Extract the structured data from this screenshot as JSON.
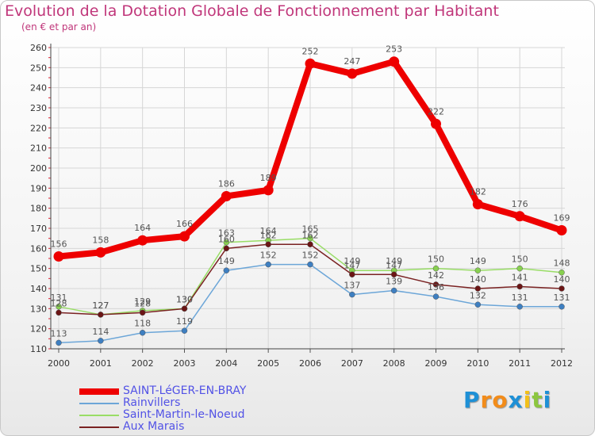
{
  "title": "Evolution de la Dotation Globale de Fonctionnement par Habitant",
  "subtitle": "(en € et par an)",
  "logo": {
    "letters": [
      "P",
      "r",
      "o",
      "x",
      "i",
      "t",
      "i"
    ],
    "colors": [
      "#1e90d6",
      "#f28c1a",
      "#f28c1a",
      "#1e90d6",
      "#f2c01a",
      "#8cc63f",
      "#1e90d6"
    ]
  },
  "chart_data": {
    "type": "line",
    "title": "Evolution de la Dotation Globale de Fonctionnement par Habitant",
    "xlabel": "",
    "ylabel": "(en € et par an)",
    "ylim": [
      110,
      260
    ],
    "yticks": [
      110,
      120,
      130,
      140,
      150,
      160,
      170,
      180,
      190,
      200,
      210,
      220,
      230,
      240,
      250,
      260
    ],
    "x": [
      "2000",
      "2001",
      "2002",
      "2003",
      "2004",
      "2005",
      "2006",
      "2007",
      "2008",
      "2009",
      "2010",
      "2011",
      "2012"
    ],
    "series": [
      {
        "name": "SAINT-LéGER-EN-BRAY",
        "color": "#ee0000",
        "marker": "#ee0000",
        "width": 8,
        "values": [
          156,
          158,
          164,
          166,
          186,
          189,
          252,
          247,
          253,
          222,
          182,
          176,
          169
        ],
        "labels": [
          "156",
          "158",
          "164",
          "166",
          "186",
          "189",
          "252",
          "247",
          "253",
          "222",
          "182",
          "176",
          "169"
        ]
      },
      {
        "name": "Rainvillers",
        "color": "#6ca6d8",
        "marker": "#3e7fc1",
        "width": 1.5,
        "values": [
          113,
          114,
          118,
          119,
          149,
          152,
          152,
          137,
          139,
          136,
          132,
          131,
          131
        ],
        "labels": [
          "113",
          "114",
          "118",
          "119",
          "149",
          "152",
          "152",
          "137",
          "139",
          "136",
          "132",
          "131",
          "131"
        ]
      },
      {
        "name": "Saint-Martin-le-Noeud",
        "color": "#99dd66",
        "marker": "#88d050",
        "width": 1.5,
        "values": [
          131,
          127,
          129,
          130,
          163,
          164,
          165,
          149,
          149,
          150,
          149,
          150,
          148
        ],
        "labels": [
          "131",
          "127",
          "129",
          "130",
          "163",
          "164",
          "165",
          "149",
          "149",
          "150",
          "149",
          "150",
          "148"
        ]
      },
      {
        "name": "Aux Marais",
        "color": "#7a2222",
        "marker": "#6b1515",
        "width": 1.5,
        "values": [
          128,
          127,
          128,
          130,
          160,
          162,
          162,
          147,
          147,
          142,
          140,
          141,
          140
        ],
        "labels": [
          "128",
          "127",
          "128",
          "130",
          "160",
          "162",
          "162",
          "147",
          "147",
          "142",
          "140",
          "141",
          "140"
        ]
      }
    ]
  }
}
